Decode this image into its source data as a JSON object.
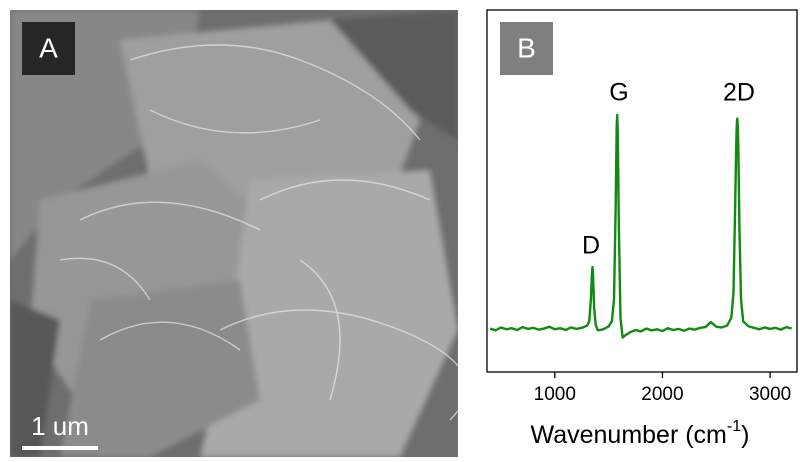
{
  "panels": [
    {
      "label": "A",
      "scale_bar": "1 um"
    }
  ],
  "chart_data": {
    "type": "line",
    "panel_label": "B",
    "x_label": {
      "text": "Wavenumber (cm",
      "superscript": "-1",
      "suffix": ")"
    },
    "annotations": [
      "D",
      "G",
      "2D"
    ],
    "xlim": [
      370,
      3250
    ],
    "xticks": [
      1000,
      2000,
      3000
    ],
    "ylim": [
      0,
      100
    ],
    "series": [
      {
        "color": "#128a12",
        "x": [
          400,
          450,
          500,
          550,
          600,
          650,
          700,
          750,
          800,
          850,
          900,
          950,
          1000,
          1050,
          1100,
          1150,
          1200,
          1250,
          1300,
          1320,
          1335,
          1345,
          1350,
          1355,
          1365,
          1380,
          1400,
          1450,
          1500,
          1530,
          1550,
          1565,
          1575,
          1580,
          1585,
          1595,
          1610,
          1630,
          1650,
          1700,
          1750,
          1800,
          1850,
          1900,
          1950,
          2000,
          2050,
          2100,
          2150,
          2200,
          2250,
          2300,
          2350,
          2400,
          2450,
          2500,
          2550,
          2600,
          2640,
          2660,
          2675,
          2685,
          2690,
          2695,
          2700,
          2705,
          2715,
          2730,
          2750,
          2800,
          2850,
          2900,
          2950,
          3000,
          3050,
          3100,
          3150,
          3200
        ],
        "values": [
          12,
          11.5,
          12.3,
          11.8,
          12.1,
          11.6,
          12.4,
          11.9,
          12.2,
          11.7,
          12,
          12.5,
          11.8,
          12.1,
          11.6,
          12.3,
          11.9,
          12.2,
          12.8,
          14,
          20,
          27,
          29,
          27,
          18,
          13,
          11.5,
          11.8,
          12.6,
          14,
          20,
          45,
          68,
          71,
          66,
          40,
          15,
          9.5,
          10,
          11,
          11.6,
          11.2,
          12,
          11.5,
          11.8,
          11.3,
          12.1,
          11.6,
          11.9,
          11.4,
          12,
          11.7,
          12.2,
          12.4,
          13.8,
          12.5,
          12.3,
          12.8,
          15,
          22,
          45,
          62,
          68,
          70,
          68,
          62,
          40,
          20,
          14,
          12.6,
          12.2,
          11.8,
          12.3,
          11.9,
          12.2,
          11.7,
          12.4,
          12
        ]
      }
    ]
  }
}
